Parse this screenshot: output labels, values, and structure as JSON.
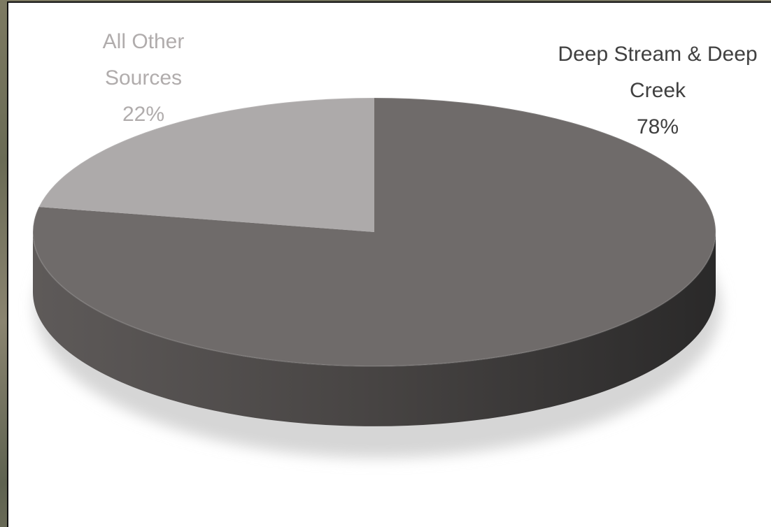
{
  "chart_data": {
    "type": "pie",
    "categories": [
      "Deep Stream & Deep Creek",
      "All Other Sources"
    ],
    "values": [
      78,
      22
    ],
    "value_labels": [
      "78%",
      "22%"
    ],
    "colors": [
      "#6f6b6a",
      "#adaaaa"
    ]
  }
}
